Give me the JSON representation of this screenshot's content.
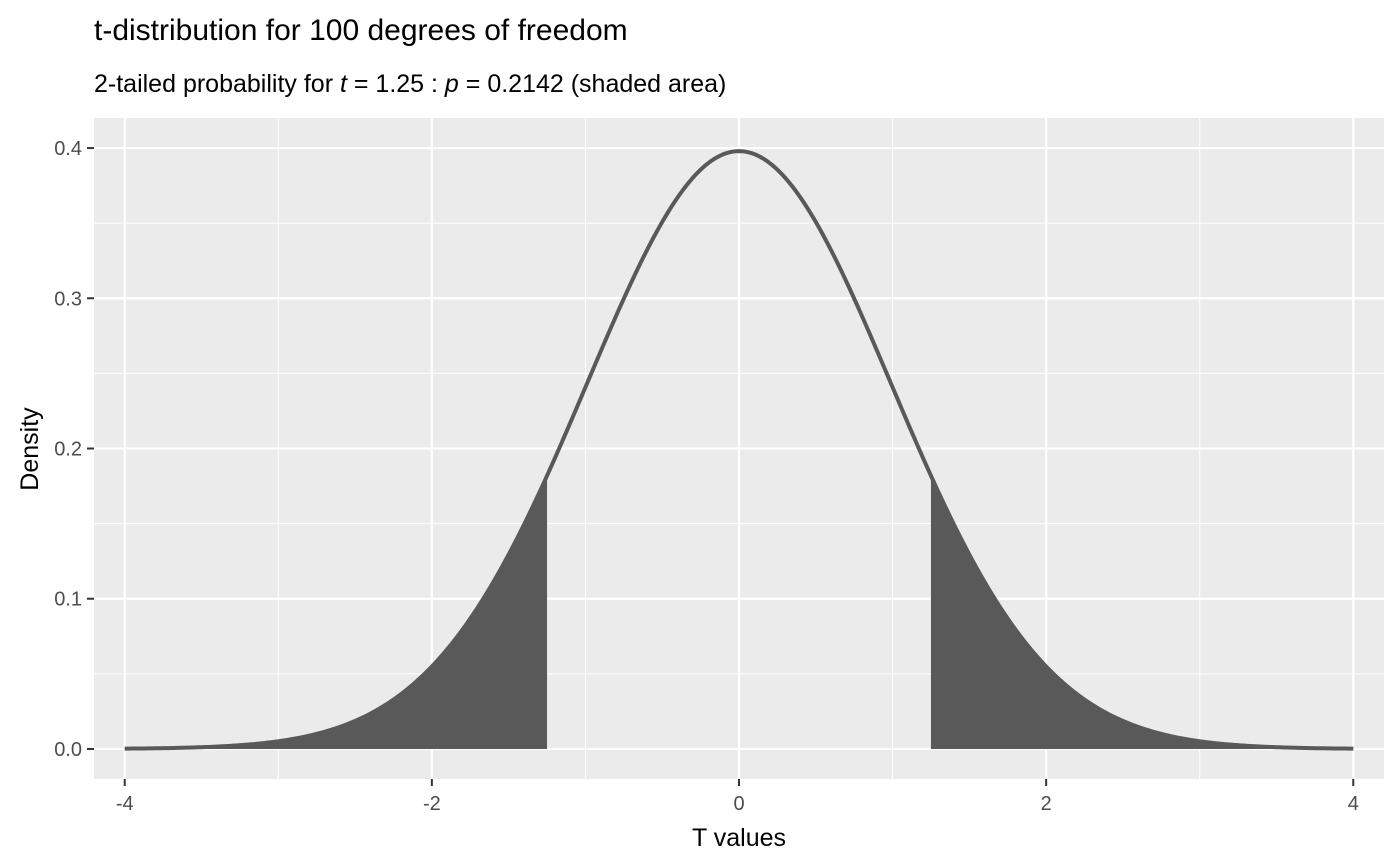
{
  "chart_data": {
    "type": "area",
    "title": "t-distribution for 100 degrees of freedom",
    "subtitle": {
      "prefix": "2-tailed probability for ",
      "t_symbol": "t",
      "t_text": " = 1.25 : ",
      "p_symbol": "p",
      "p_text": " = 0.2142 (shaded area)"
    },
    "xlabel": "T values",
    "ylabel": "Density",
    "df": 100,
    "t_value": 1.25,
    "p_value": 0.2142,
    "xlim": [
      -4.2,
      4.2
    ],
    "ylim": [
      -0.02,
      0.42
    ],
    "x_ticks": [
      -4,
      -2,
      0,
      2,
      4
    ],
    "x_tick_labels": [
      "-4",
      "-2",
      "0",
      "2",
      "4"
    ],
    "y_ticks": [
      0.0,
      0.1,
      0.2,
      0.3,
      0.4
    ],
    "y_tick_labels": [
      "0.0",
      "0.1",
      "0.2",
      "0.3",
      "0.4"
    ],
    "x_range": [
      -4,
      4
    ],
    "shaded_regions": [
      [
        -4,
        -1.25
      ],
      [
        1.25,
        4
      ]
    ],
    "grid": true,
    "colors": {
      "panel": "#ebebeb",
      "grid_major": "#ffffff",
      "curve": "#595959",
      "shade": "#595959",
      "tick_label": "#4d4d4d",
      "tick_mark": "#333333"
    }
  }
}
